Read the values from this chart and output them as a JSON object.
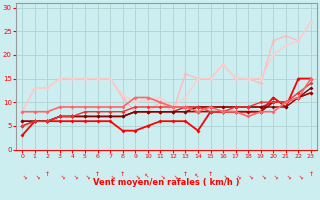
{
  "xlabel": "Vent moyen/en rafales ( km/h )",
  "bg_color": "#cceef0",
  "grid_color": "#aacccc",
  "xlim": [
    -0.5,
    23.5
  ],
  "ylim": [
    0,
    31
  ],
  "yticks": [
    0,
    5,
    10,
    15,
    20,
    25,
    30
  ],
  "xticks": [
    0,
    1,
    2,
    3,
    4,
    5,
    6,
    7,
    8,
    9,
    10,
    11,
    12,
    13,
    14,
    15,
    16,
    17,
    18,
    19,
    20,
    21,
    22,
    23
  ],
  "series": [
    {
      "x": [
        0,
        1,
        2,
        3,
        4,
        5,
        6,
        7,
        8,
        9,
        10,
        11,
        12,
        13,
        14,
        15,
        16,
        17,
        18,
        19,
        20,
        21,
        22,
        23
      ],
      "y": [
        8,
        13,
        13,
        15,
        15,
        15,
        15,
        15,
        11,
        8,
        8,
        10,
        8,
        16,
        15,
        15,
        18,
        15,
        15,
        14,
        23,
        24,
        23,
        27
      ],
      "color": "#ffbbbb",
      "lw": 1.0,
      "marker": true
    },
    {
      "x": [
        0,
        1,
        2,
        3,
        4,
        5,
        6,
        7,
        8,
        9,
        10,
        11,
        12,
        13,
        14,
        15,
        16,
        17,
        18,
        19,
        20,
        21,
        22,
        23
      ],
      "y": [
        8,
        13,
        13,
        15,
        15,
        15,
        15,
        15,
        11.5,
        10,
        10.5,
        11,
        9,
        11,
        15,
        15,
        18,
        15,
        15,
        15,
        20,
        22,
        23,
        27
      ],
      "color": "#ffcccc",
      "lw": 1.0,
      "marker": true
    },
    {
      "x": [
        0,
        1,
        2,
        3,
        4,
        5,
        6,
        7,
        8,
        9,
        10,
        11,
        12,
        13,
        14,
        15,
        16,
        17,
        18,
        19,
        20,
        21,
        22,
        23
      ],
      "y": [
        3,
        6,
        6,
        6,
        6,
        6,
        6,
        6,
        4,
        4,
        5,
        6,
        6,
        6,
        4,
        8,
        8,
        8,
        8,
        8,
        11,
        9,
        15,
        15
      ],
      "color": "#ff0000",
      "lw": 1.3,
      "marker": true
    },
    {
      "x": [
        0,
        1,
        2,
        3,
        4,
        5,
        6,
        7,
        8,
        9,
        10,
        11,
        12,
        13,
        14,
        15,
        16,
        17,
        18,
        19,
        20,
        21,
        22,
        23
      ],
      "y": [
        5,
        6,
        6,
        7,
        7,
        7,
        7,
        7,
        7,
        8,
        8,
        8,
        8,
        9,
        9,
        9,
        9,
        9,
        9,
        9,
        10,
        10,
        11,
        12
      ],
      "color": "#cc2222",
      "lw": 1.0,
      "marker": true
    },
    {
      "x": [
        0,
        1,
        2,
        3,
        4,
        5,
        6,
        7,
        8,
        9,
        10,
        11,
        12,
        13,
        14,
        15,
        16,
        17,
        18,
        19,
        20,
        21,
        22,
        23
      ],
      "y": [
        6,
        6,
        6,
        7,
        7,
        7,
        7,
        7,
        7,
        8,
        8,
        8,
        8,
        8,
        8,
        8,
        8,
        8,
        8,
        8,
        10,
        10,
        11,
        12
      ],
      "color": "#aa0000",
      "lw": 1.0,
      "marker": true
    },
    {
      "x": [
        0,
        1,
        2,
        3,
        4,
        5,
        6,
        7,
        8,
        9,
        10,
        11,
        12,
        13,
        14,
        15,
        16,
        17,
        18,
        19,
        20,
        21,
        22,
        23
      ],
      "y": [
        6,
        6,
        6,
        7,
        7,
        7,
        7,
        7,
        7,
        8,
        8,
        8,
        8,
        8,
        9,
        9,
        9,
        9,
        9,
        9,
        9,
        9,
        11,
        13
      ],
      "color": "#880000",
      "lw": 1.0,
      "marker": true
    },
    {
      "x": [
        0,
        1,
        2,
        3,
        4,
        5,
        6,
        7,
        8,
        9,
        10,
        11,
        12,
        13,
        14,
        15,
        16,
        17,
        18,
        19,
        20,
        21,
        22,
        23
      ],
      "y": [
        5,
        6,
        6,
        7,
        7,
        8,
        8,
        8,
        8,
        9,
        9,
        9,
        9,
        9,
        9,
        8,
        8,
        9,
        9,
        10,
        10,
        10,
        12,
        14
      ],
      "color": "#ee3333",
      "lw": 1.0,
      "marker": true
    },
    {
      "x": [
        0,
        1,
        2,
        3,
        4,
        5,
        6,
        7,
        8,
        9,
        10,
        11,
        12,
        13,
        14,
        15,
        16,
        17,
        18,
        19,
        20,
        21,
        22,
        23
      ],
      "y": [
        8,
        8,
        8,
        9,
        9,
        9,
        9,
        9,
        9,
        11,
        11,
        10,
        9,
        9,
        8,
        9,
        8,
        8,
        7,
        8,
        8,
        10,
        11,
        15
      ],
      "color": "#ff6666",
      "lw": 1.2,
      "marker": true
    }
  ],
  "wind_symbols": [
    "k",
    "k",
    "u",
    "k",
    "k",
    "k",
    "u",
    "k",
    "u",
    "k",
    "^",
    "k",
    "k",
    "u",
    "^",
    "u",
    "k",
    "k",
    "k",
    "k",
    "k",
    "k",
    "k",
    "u"
  ]
}
